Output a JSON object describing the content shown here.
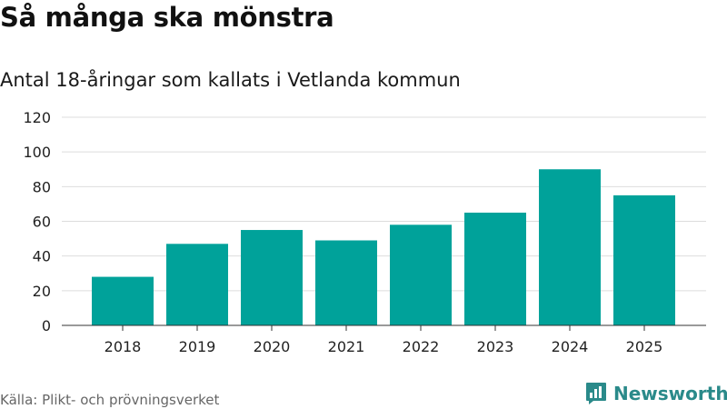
{
  "header": {
    "title": "Så många ska mönstra",
    "subtitle": "Antal 18-åringar som kallats i Vetlanda kommun"
  },
  "footer": {
    "source": "Källa: Plikt- och prövningsverket",
    "brand": "Newsworthy"
  },
  "colors": {
    "bar": "#00a29a",
    "brand": "#2a8a8a"
  },
  "chart_data": {
    "type": "bar",
    "title": "Så många ska mönstra",
    "subtitle": "Antal 18-åringar som kallats i Vetlanda kommun",
    "xlabel": "",
    "ylabel": "",
    "categories": [
      "2018",
      "2019",
      "2020",
      "2021",
      "2022",
      "2023",
      "2024",
      "2025"
    ],
    "values": [
      28,
      47,
      55,
      49,
      58,
      65,
      90,
      75
    ],
    "ylim": [
      0,
      120
    ],
    "yticks": [
      0,
      20,
      40,
      60,
      80,
      100,
      120
    ],
    "grid": true,
    "legend": "none"
  }
}
